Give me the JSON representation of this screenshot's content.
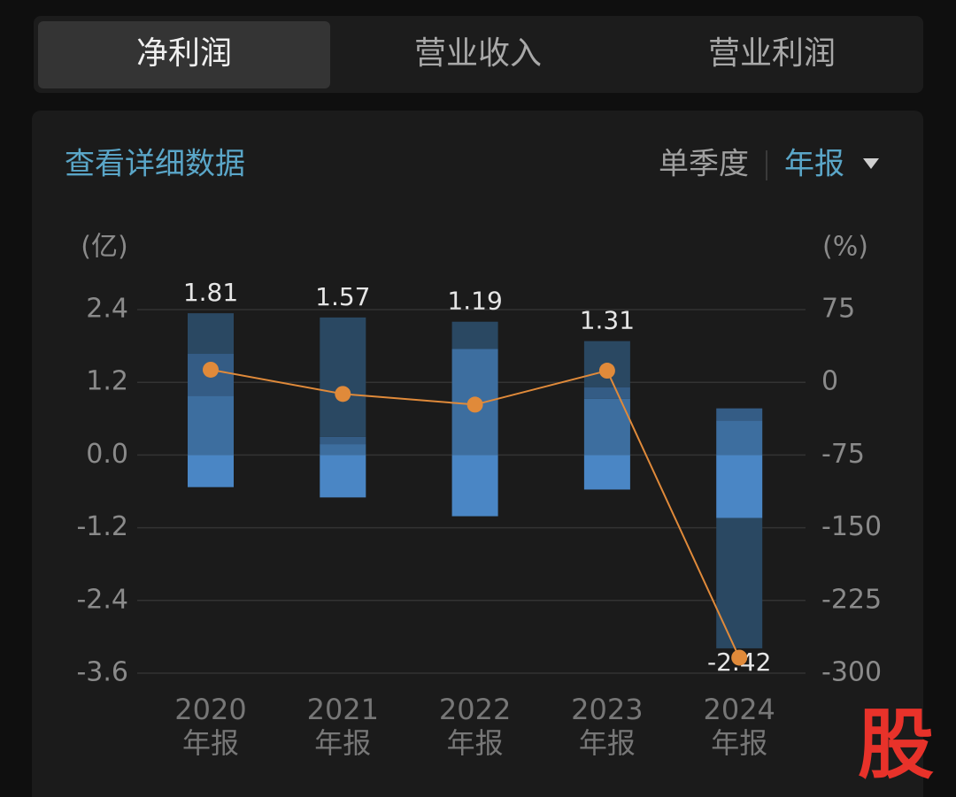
{
  "tabs": [
    "净利润",
    "营业收入",
    "营业利润"
  ],
  "header": {
    "link": "查看详细数据",
    "mode_quarter": "单季度",
    "mode_annual": "年报"
  },
  "watermark": "股",
  "chart_data": {
    "type": "bar-line",
    "y_unit": "(亿)",
    "y2_unit": "(%)",
    "categories": [
      [
        "2020",
        "年报"
      ],
      [
        "2021",
        "年报"
      ],
      [
        "2022",
        "年报"
      ],
      [
        "2023",
        "年报"
      ],
      [
        "2024",
        "年报"
      ]
    ],
    "series": [
      {
        "color": "#3d6e9f",
        "values": [
          0.98,
          0.18,
          1.75,
          0.93,
          0.57
        ]
      },
      {
        "color": "#345c85",
        "values": [
          0.69,
          0.12,
          0,
          0.19,
          0.2
        ]
      },
      {
        "color": "#2a4862",
        "values": [
          0.67,
          1.97,
          0.45,
          0.76,
          -2.15
        ]
      },
      {
        "color": "#4a86c5",
        "values": [
          -0.53,
          -0.7,
          -1.01,
          -0.57,
          -1.04
        ]
      },
      {
        "type": "line",
        "axis": "y2",
        "color": "#e08a3a",
        "values": [
          13,
          -12,
          -23,
          12,
          -284
        ]
      }
    ],
    "totals": [
      1.81,
      1.57,
      1.19,
      1.31,
      -2.42
    ],
    "ylim": [
      -3.6,
      2.4
    ],
    "yticks": [
      2.4,
      1.2,
      {
        "value": 0,
        "label": "0.0"
      },
      -1.2,
      -2.4,
      -3.6
    ],
    "y2lim": [
      -300,
      75
    ],
    "y2ticks": [
      75,
      0,
      -75,
      -150,
      -225,
      -300
    ],
    "grid": true
  }
}
